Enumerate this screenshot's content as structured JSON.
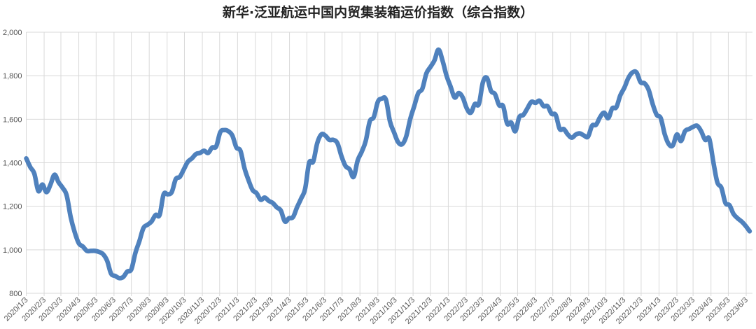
{
  "chart_data": {
    "type": "line",
    "title": "新华·泛亚航运中国内贸集装箱运价指数（综合指数）",
    "xlabel": "",
    "ylabel": "",
    "ylim": [
      800,
      2000
    ],
    "yticks": [
      800,
      1000,
      1200,
      1400,
      1600,
      1800,
      2000
    ],
    "ytick_labels": [
      "800",
      "1,000",
      "1,200",
      "1,400",
      "1,600",
      "1,800",
      "2,000"
    ],
    "xtick_labels": [
      "2020/1/3",
      "2020/2/3",
      "2020/3/3",
      "2020/4/3",
      "2020/5/3",
      "2020/6/3",
      "2020/7/3",
      "2020/8/3",
      "2020/9/3",
      "2020/10/3",
      "2020/11/3",
      "2020/12/3",
      "2021/1/3",
      "2021/2/3",
      "2021/3/3",
      "2021/4/3",
      "2021/5/3",
      "2021/6/3",
      "2021/7/3",
      "2021/8/3",
      "2021/9/3",
      "2021/10/3",
      "2021/11/3",
      "2021/12/3",
      "2022/1/3",
      "2022/2/3",
      "2022/3/3",
      "2022/4/3",
      "2022/5/3",
      "2022/6/3",
      "2022/7/3",
      "2022/8/3",
      "2022/9/3",
      "2022/10/3",
      "2022/11/3",
      "2022/12/3",
      "2023/1/3",
      "2023/2/3",
      "2023/3/3",
      "2023/4/3",
      "2023/5/3",
      "2023/6/3"
    ],
    "x_start": "2020/1/3",
    "frequency": "weekly",
    "grid": true,
    "line_color": "#4F81BD",
    "grid_color": "#D9D9D9",
    "values": [
      1420,
      1380,
      1350,
      1270,
      1300,
      1265,
      1300,
      1345,
      1310,
      1285,
      1250,
      1150,
      1080,
      1030,
      1015,
      995,
      995,
      995,
      990,
      980,
      950,
      890,
      880,
      870,
      875,
      900,
      910,
      985,
      1040,
      1100,
      1115,
      1130,
      1160,
      1160,
      1255,
      1255,
      1265,
      1325,
      1335,
      1370,
      1405,
      1420,
      1440,
      1445,
      1455,
      1445,
      1470,
      1475,
      1540,
      1550,
      1545,
      1525,
      1470,
      1455,
      1375,
      1320,
      1275,
      1260,
      1230,
      1240,
      1225,
      1215,
      1195,
      1180,
      1130,
      1145,
      1150,
      1195,
      1235,
      1280,
      1400,
      1405,
      1490,
      1530,
      1525,
      1505,
      1505,
      1490,
      1430,
      1385,
      1370,
      1335,
      1410,
      1450,
      1500,
      1590,
      1610,
      1680,
      1695,
      1690,
      1590,
      1540,
      1495,
      1485,
      1520,
      1600,
      1660,
      1720,
      1740,
      1810,
      1840,
      1870,
      1920,
      1870,
      1800,
      1750,
      1700,
      1720,
      1700,
      1650,
      1630,
      1670,
      1670,
      1770,
      1790,
      1730,
      1715,
      1665,
      1660,
      1580,
      1585,
      1545,
      1610,
      1620,
      1650,
      1680,
      1675,
      1685,
      1660,
      1660,
      1625,
      1620,
      1555,
      1555,
      1530,
      1515,
      1530,
      1535,
      1525,
      1520,
      1570,
      1575,
      1610,
      1630,
      1605,
      1650,
      1655,
      1710,
      1745,
      1790,
      1815,
      1815,
      1770,
      1765,
      1735,
      1670,
      1620,
      1605,
      1530,
      1485,
      1480,
      1530,
      1500,
      1545,
      1555,
      1565,
      1570,
      1545,
      1505,
      1510,
      1405,
      1310,
      1285,
      1215,
      1205,
      1165,
      1145,
      1130,
      1110,
      1085
    ]
  }
}
